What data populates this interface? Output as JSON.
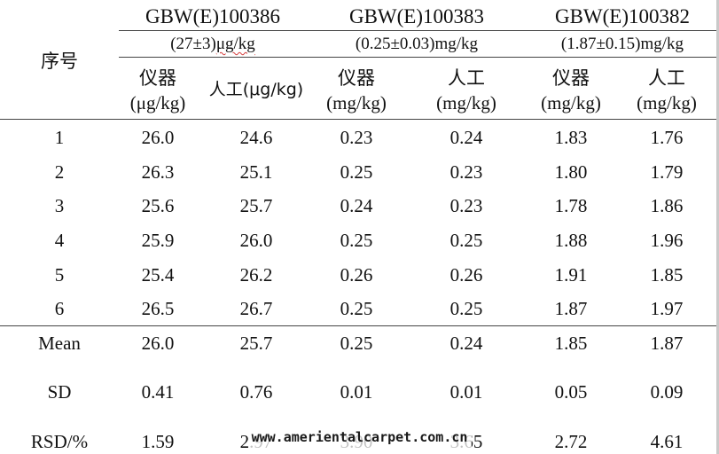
{
  "table": {
    "index_header": "序号",
    "standards": [
      {
        "name": "GBW(E)100386",
        "conc_prefix": "(27±3)",
        "conc_unit": "μg/kg"
      },
      {
        "name": "GBW(E)100383",
        "conc_prefix": "(0.25±0.03)mg/kg",
        "conc_unit": ""
      },
      {
        "name": "GBW(E)100382",
        "conc_prefix": "(1.87±0.15)mg/kg",
        "conc_unit": ""
      }
    ],
    "sub_headers": [
      {
        "line1": "仪器",
        "line2": "(μg/kg)"
      },
      {
        "line1": "人工(μg/kg)",
        "line2": ""
      },
      {
        "line1": "仪器",
        "line2": "(mg/kg)"
      },
      {
        "line1": "人工",
        "line2": "(mg/kg)"
      },
      {
        "line1": "仪器",
        "line2": "(mg/kg)"
      },
      {
        "line1": "人工",
        "line2": "(mg/kg)"
      }
    ],
    "rows": [
      {
        "label": "1",
        "values": [
          "26.0",
          "24.6",
          "0.23",
          "0.24",
          "1.83",
          "1.76"
        ]
      },
      {
        "label": "2",
        "values": [
          "26.3",
          "25.1",
          "0.25",
          "0.23",
          "1.80",
          "1.79"
        ]
      },
      {
        "label": "3",
        "values": [
          "25.6",
          "25.7",
          "0.24",
          "0.23",
          "1.78",
          "1.86"
        ]
      },
      {
        "label": "4",
        "values": [
          "25.9",
          "26.0",
          "0.25",
          "0.25",
          "1.88",
          "1.96"
        ]
      },
      {
        "label": "5",
        "values": [
          "25.4",
          "26.2",
          "0.26",
          "0.26",
          "1.91",
          "1.85"
        ]
      },
      {
        "label": "6",
        "values": [
          "26.5",
          "26.7",
          "0.25",
          "0.25",
          "1.87",
          "1.97"
        ]
      }
    ],
    "stats": [
      {
        "label": "Mean",
        "values": [
          "26.0",
          "25.7",
          "0.25",
          "0.24",
          "1.85",
          "1.87"
        ]
      },
      {
        "label": "SD",
        "values": [
          "0.41",
          "0.76",
          "0.01",
          "0.01",
          "0.05",
          "0.09"
        ]
      },
      {
        "label": "RSD/%",
        "values": [
          "1.59",
          "2.97",
          "3.90",
          "3.65",
          "2.72",
          "4.61"
        ]
      }
    ]
  },
  "watermark": "www.amerientalcarpet.com.cn",
  "colors": {
    "rule": "#333333",
    "squiggle": "#d43b3b",
    "background": "#ffffff"
  }
}
